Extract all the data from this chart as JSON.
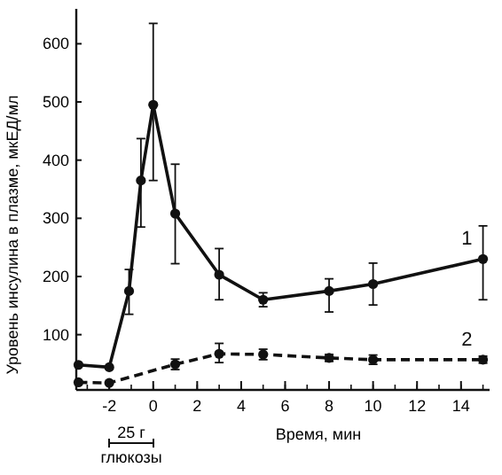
{
  "chart_data": {
    "type": "line",
    "xlabel": "Время, мин",
    "ylabel": "Уровень инсулина в плазме, мкЕД/мл",
    "xlim": [
      -3.5,
      15.3
    ],
    "ylim": [
      5,
      660
    ],
    "xticks": [
      -2,
      0,
      2,
      4,
      6,
      8,
      10,
      12,
      14
    ],
    "yticks": [
      100,
      200,
      300,
      400,
      500,
      600
    ],
    "marker": "circle",
    "grid": false,
    "series": [
      {
        "name": "1",
        "color": "#111111",
        "line_style": "solid",
        "x": [
          -3.4,
          -2,
          -1.1,
          -0.56,
          0,
          1,
          3,
          5,
          8,
          10,
          15
        ],
        "values": [
          48,
          44,
          175,
          365,
          495,
          308,
          203,
          160,
          175,
          187,
          230
        ],
        "errors": [
          null,
          null,
          [
            135,
            212
          ],
          [
            285,
            437
          ],
          [
            365,
            635
          ],
          [
            222,
            393
          ],
          [
            160,
            248
          ],
          [
            148,
            172
          ],
          [
            139,
            196
          ],
          [
            151,
            223
          ],
          [
            160,
            287
          ]
        ]
      },
      {
        "name": "2",
        "color": "#111111",
        "line_style": "dashed",
        "x": [
          -3.4,
          -2,
          1,
          3,
          5,
          8,
          10,
          15
        ],
        "values": [
          18,
          17,
          49,
          67,
          66,
          60,
          57,
          57
        ],
        "errors": [
          null,
          null,
          [
            40,
            58
          ],
          [
            52,
            85
          ],
          [
            57,
            75
          ],
          [
            54,
            66
          ],
          [
            49,
            65
          ],
          [
            51,
            63
          ]
        ]
      }
    ],
    "annotations": [
      "25 г глюкозы"
    ]
  }
}
